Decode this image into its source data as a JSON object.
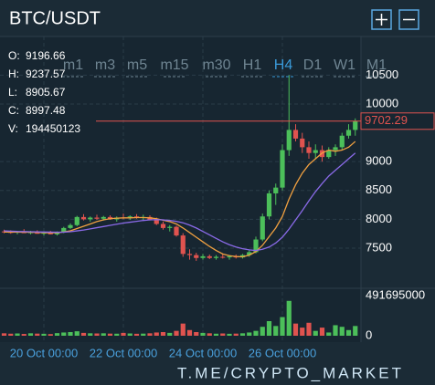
{
  "header": {
    "title": "BTC/USDT"
  },
  "timeframes": [
    "m1",
    "m3",
    "m5",
    "m15",
    "m30",
    "H1",
    "H4",
    "D1",
    "W1",
    "M1"
  ],
  "active_timeframe": "H4",
  "ohlc": [
    {
      "label": "O:",
      "value": "9196.66"
    },
    {
      "label": "H:",
      "value": "9237.57"
    },
    {
      "label": "L:",
      "value": "8905.67"
    },
    {
      "label": "C:",
      "value": "8997.48"
    },
    {
      "label": "V:",
      "value": "194450123"
    }
  ],
  "watermark": "T.ME/CRYPTO_MARKET",
  "chart_data": {
    "type": "candlestick",
    "categories": [
      null,
      null,
      null,
      null,
      null,
      null,
      "20 Oct 00:00",
      null,
      null,
      null,
      null,
      null,
      null,
      null,
      null,
      null,
      null,
      null,
      "22 Oct 00:00",
      null,
      null,
      null,
      null,
      null,
      null,
      null,
      null,
      null,
      null,
      null,
      "24 Oct 00:00",
      null,
      null,
      null,
      null,
      null,
      null,
      null,
      null,
      null,
      null,
      null,
      "26 Oct 00:00",
      null,
      null,
      null,
      null,
      null,
      null,
      null,
      null,
      null,
      null,
      null
    ],
    "candles": {
      "open": [
        7790,
        7780,
        7770,
        7790,
        7760,
        7780,
        7750,
        7770,
        7740,
        7780,
        7850,
        7900,
        8040,
        8000,
        8030,
        8010,
        8040,
        8000,
        8030,
        8020,
        8050,
        8030,
        8040,
        7990,
        7920,
        7850,
        7870,
        7720,
        7400,
        7380,
        7330,
        7360,
        7330,
        7350,
        7340,
        7360,
        7340,
        7380,
        7430,
        7650,
        8050,
        8450,
        8550,
        9200,
        9550,
        9400,
        9250,
        9150,
        9200,
        9080,
        9200,
        9250,
        9450,
        9550
      ],
      "high": [
        7820,
        7810,
        7800,
        7830,
        7800,
        7810,
        7790,
        7800,
        7790,
        7870,
        7930,
        8060,
        8090,
        8050,
        8080,
        8060,
        8070,
        8050,
        8100,
        8070,
        8090,
        8080,
        8070,
        8030,
        7960,
        7900,
        7890,
        7760,
        7480,
        7420,
        7400,
        7390,
        7380,
        7400,
        7380,
        7390,
        7400,
        7460,
        7700,
        8100,
        8500,
        8620,
        9300,
        10500,
        9650,
        9500,
        9350,
        9300,
        9280,
        9250,
        9300,
        9500,
        9650,
        9750
      ],
      "low": [
        7760,
        7750,
        7740,
        7770,
        7740,
        7750,
        7720,
        7740,
        7720,
        7760,
        7830,
        7880,
        7980,
        7960,
        7990,
        7980,
        7990,
        7960,
        8000,
        7990,
        8010,
        7990,
        7980,
        7900,
        7820,
        7790,
        7700,
        7350,
        7300,
        7280,
        7300,
        7310,
        7300,
        7320,
        7300,
        7320,
        7320,
        7350,
        7410,
        7620,
        8000,
        8250,
        8500,
        9100,
        9350,
        9150,
        9050,
        9050,
        9000,
        9050,
        9100,
        9200,
        9400,
        9450
      ],
      "close": [
        7780,
        7770,
        7790,
        7760,
        7780,
        7750,
        7770,
        7740,
        7780,
        7850,
        7900,
        8040,
        8000,
        8030,
        8010,
        8040,
        8000,
        8030,
        8020,
        8050,
        8030,
        8040,
        7990,
        7920,
        7850,
        7870,
        7720,
        7400,
        7380,
        7330,
        7360,
        7330,
        7350,
        7340,
        7360,
        7340,
        7380,
        7430,
        7650,
        8050,
        8450,
        8550,
        9200,
        9550,
        9400,
        9250,
        9150,
        9200,
        9080,
        9200,
        9250,
        9450,
        9550,
        9702.29
      ]
    },
    "up_color": "#4cbf5a",
    "down_color": "#e0534f",
    "lines": [
      {
        "color": "#f0a040",
        "values": [
          7780,
          7780,
          7778,
          7780,
          7776,
          7774,
          7770,
          7766,
          7768,
          7780,
          7800,
          7840,
          7880,
          7920,
          7960,
          7990,
          8010,
          8020,
          8025,
          8025,
          8030,
          8030,
          8025,
          8010,
          7985,
          7960,
          7920,
          7850,
          7770,
          7690,
          7610,
          7530,
          7460,
          7400,
          7370,
          7355,
          7350,
          7380,
          7440,
          7550,
          7700,
          7850,
          8050,
          8350,
          8600,
          8800,
          8950,
          9050,
          9150,
          9200,
          9180,
          9200,
          9250,
          9350
        ]
      },
      {
        "color": "#8a6ae8",
        "values": [
          7800,
          7795,
          7790,
          7788,
          7785,
          7782,
          7780,
          7778,
          7776,
          7778,
          7785,
          7800,
          7815,
          7835,
          7855,
          7875,
          7895,
          7915,
          7935,
          7950,
          7965,
          7980,
          7990,
          7995,
          7990,
          7980,
          7965,
          7940,
          7900,
          7850,
          7790,
          7730,
          7670,
          7610,
          7560,
          7520,
          7490,
          7470,
          7460,
          7480,
          7520,
          7590,
          7690,
          7830,
          7990,
          8150,
          8320,
          8480,
          8620,
          8750,
          8850,
          8950,
          9050,
          9150
        ]
      }
    ],
    "last_price": 9702.29,
    "last_price_color": "#e0534f",
    "ylim": [
      6820,
      11170
    ],
    "yticks": [
      7500,
      8000,
      8500,
      9000,
      10000,
      10500
    ],
    "volume": [
      30000000,
      25000000,
      28000000,
      22000000,
      30000000,
      26000000,
      24000000,
      20000000,
      32000000,
      40000000,
      45000000,
      55000000,
      35000000,
      30000000,
      28000000,
      30000000,
      26000000,
      25000000,
      35000000,
      28000000,
      24000000,
      26000000,
      30000000,
      40000000,
      45000000,
      35000000,
      60000000,
      150000000,
      70000000,
      45000000,
      35000000,
      30000000,
      25000000,
      28000000,
      24000000,
      26000000,
      30000000,
      40000000,
      60000000,
      110000000,
      180000000,
      120000000,
      230000000,
      430000000,
      150000000,
      100000000,
      160000000,
      60000000,
      100000000,
      40000000,
      130000000,
      110000000,
      70000000,
      120000000
    ],
    "vlim": [
      0,
      540000000
    ],
    "vticks": [
      0,
      491695000
    ],
    "grid": true
  }
}
